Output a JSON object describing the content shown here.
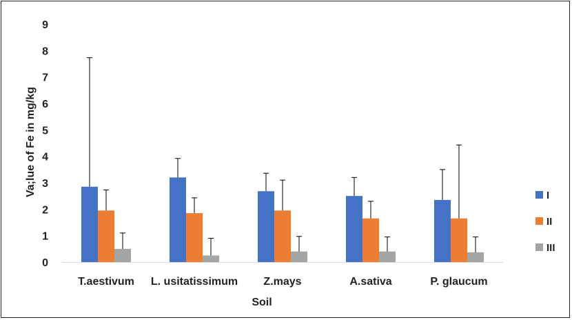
{
  "chart_data": {
    "type": "bar",
    "title": "",
    "xlabel": "Soil",
    "ylabel": "Va;lue of Fe in mg/kg",
    "ylim": [
      0,
      9
    ],
    "yticks": [
      0,
      1,
      2,
      3,
      4,
      5,
      6,
      7,
      8,
      9
    ],
    "grid": false,
    "legend_position": "right",
    "categories": [
      "T.aestivum",
      "L. usitatissimum",
      "Z.mays",
      "A.sativa",
      "P. glaucum"
    ],
    "series": [
      {
        "name": "I",
        "color": "#4472C4",
        "values": [
          2.85,
          3.2,
          2.68,
          2.5,
          2.35
        ],
        "errors": [
          4.88,
          0.72,
          0.68,
          0.7,
          1.15
        ]
      },
      {
        "name": "II",
        "color": "#ED7D31",
        "values": [
          1.95,
          1.85,
          1.95,
          1.65,
          1.65
        ],
        "errors": [
          0.78,
          0.58,
          1.15,
          0.65,
          2.78
        ]
      },
      {
        "name": "III",
        "color": "#A5A5A5",
        "values": [
          0.5,
          0.25,
          0.4,
          0.4,
          0.37
        ],
        "errors": [
          0.6,
          0.65,
          0.57,
          0.55,
          0.58
        ]
      }
    ]
  }
}
